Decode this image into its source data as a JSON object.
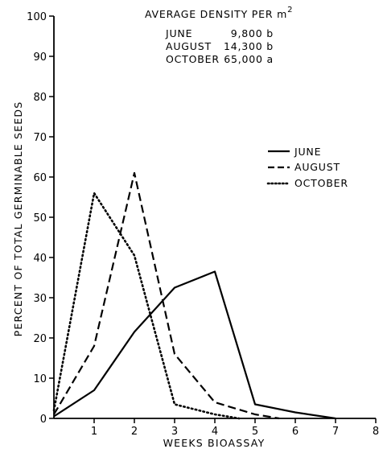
{
  "chart_data": {
    "type": "line",
    "title": "",
    "xlabel": "WEEKS BIOASSAY",
    "ylabel": "PERCENT OF TOTAL GERMINABLE SEEDS",
    "xlim": [
      0,
      8
    ],
    "ylim": [
      0,
      100
    ],
    "xticks": [
      "1",
      "2",
      "3",
      "4",
      "5",
      "6",
      "7",
      "8"
    ],
    "yticks": [
      "0",
      "10",
      "20",
      "30",
      "40",
      "50",
      "60",
      "70",
      "80",
      "90",
      "100"
    ],
    "grid": false,
    "legend_position": "right",
    "series": [
      {
        "name": "JUNE",
        "style": "solid",
        "color": "#000000",
        "x": [
          0,
          1,
          2,
          3,
          4,
          5,
          6,
          7
        ],
        "y": [
          0.5,
          7,
          21.5,
          32.5,
          36.5,
          3.5,
          1.5,
          0
        ]
      },
      {
        "name": "AUGUST",
        "style": "dashed",
        "color": "#000000",
        "x": [
          0,
          1,
          2,
          3,
          4,
          5,
          5.6
        ],
        "y": [
          1,
          18,
          61,
          16,
          4,
          1,
          0
        ]
      },
      {
        "name": "OCTOBER",
        "style": "dotted",
        "color": "#000000",
        "x": [
          0,
          1,
          2,
          3,
          4,
          4.6
        ],
        "y": [
          2,
          56,
          40.5,
          3.5,
          1,
          0
        ]
      }
    ],
    "annotation": {
      "title": "AVERAGE DENSITY PER m",
      "title_superscript": "2",
      "rows": [
        {
          "month": "JUNE",
          "value": "9,800 b"
        },
        {
          "month": "AUGUST",
          "value": "14,300 b"
        },
        {
          "month": "OCTOBER",
          "value": "65,000 a"
        }
      ]
    }
  }
}
